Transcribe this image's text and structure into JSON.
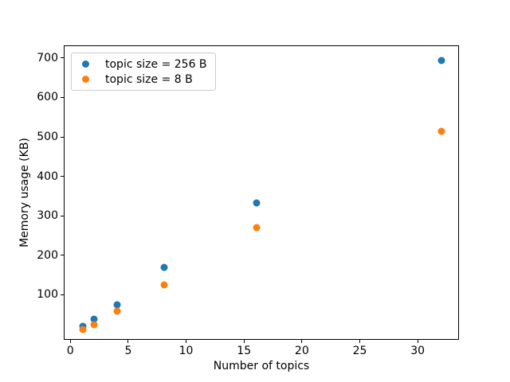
{
  "chart_data": {
    "type": "scatter",
    "x": [
      1,
      2,
      4,
      8,
      16,
      32
    ],
    "series": [
      {
        "name": "topic size = 256 B",
        "color": "#1f77b4",
        "values": [
          23,
          40,
          77,
          172,
          335,
          695
        ]
      },
      {
        "name": "topic size = 8 B",
        "color": "#ff7f0e",
        "values": [
          14,
          27,
          60,
          127,
          272,
          517
        ]
      }
    ],
    "title": "",
    "xlabel": "Number of topics",
    "ylabel": "Memory usage (KB)",
    "xlim": [
      -0.57,
      33.57
    ],
    "ylim": [
      -14,
      732
    ],
    "x_ticks": [
      0,
      5,
      10,
      15,
      20,
      25,
      30
    ],
    "y_ticks": [
      100,
      200,
      300,
      400,
      500,
      600,
      700
    ],
    "legend_position": "upper left",
    "grid": false,
    "marker": "circle",
    "background_color": "#ffffff",
    "spine_color": "#000000"
  }
}
